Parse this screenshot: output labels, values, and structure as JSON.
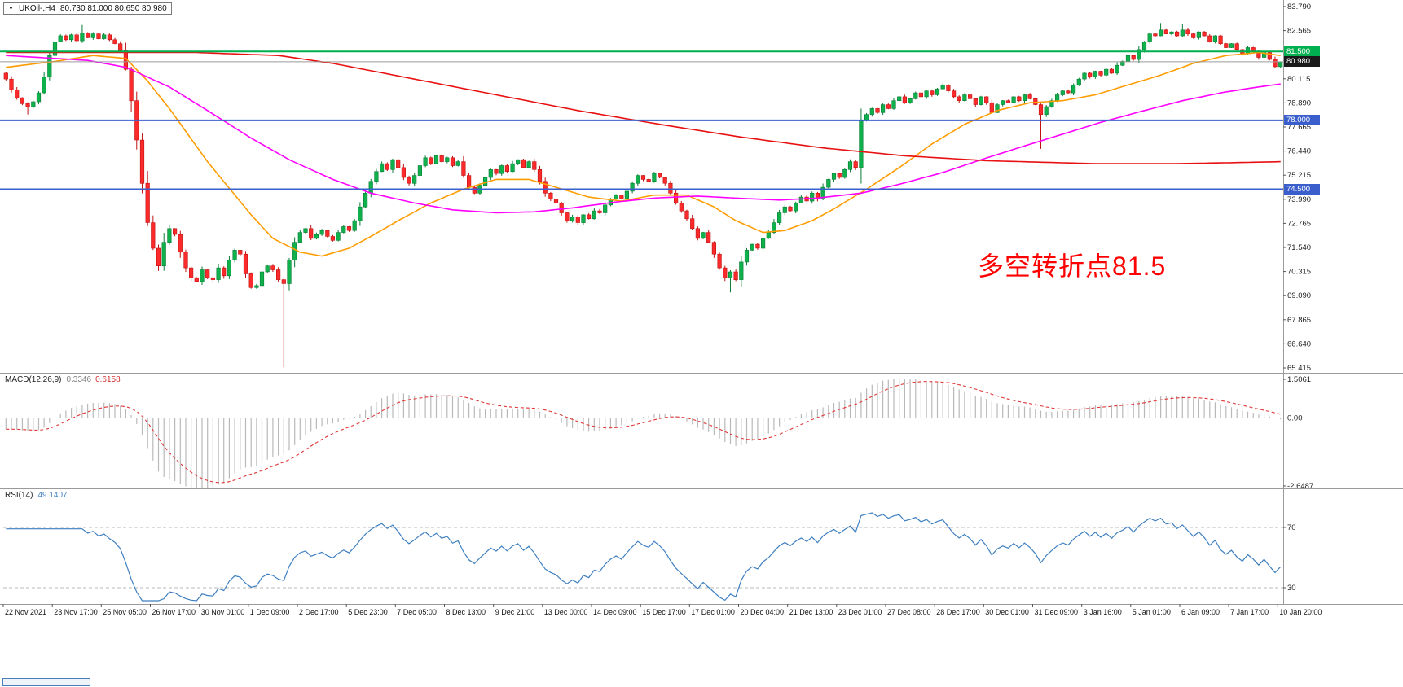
{
  "header": {
    "dropdown_icon": "▼",
    "symbol": "UKOil-,H4",
    "ohlc": "80.730 81.000 80.650 80.980"
  },
  "annotation": {
    "text": "多空转折点81.5",
    "color": "#fe0000"
  },
  "price_axis": {
    "labels": [
      "83.790",
      "82.565",
      "81.340",
      "80.115",
      "78.890",
      "77.665",
      "76.440",
      "75.215",
      "73.990",
      "72.765",
      "71.540",
      "70.315",
      "69.090",
      "67.865",
      "66.640",
      "65.415"
    ]
  },
  "hlines": [
    {
      "price": 81.5,
      "label": "81.500",
      "color": "#00b050",
      "width": 2
    },
    {
      "price": 78.0,
      "label": "78.000",
      "color": "#3a5fcd",
      "width": 2
    },
    {
      "price": 74.5,
      "label": "74.500",
      "color": "#3a5fcd",
      "width": 2
    }
  ],
  "current_price": {
    "value": 80.98,
    "label": "80.980",
    "line_color": "#9a9a9a",
    "badge_bg": "#1a1a1a"
  },
  "macd": {
    "name": "MACD(12,26,9)",
    "main_value": "0.3346",
    "signal_value": "0.6158",
    "axis_labels": [
      "1.5061",
      "0.00",
      "-2.6487"
    ],
    "histogram_color": "#b9b9b9",
    "signal_color": "#e03636"
  },
  "rsi": {
    "name": "RSI(14)",
    "value": "49.1407",
    "levels": [
      "70",
      "30"
    ],
    "line_color": "#3e7fc1"
  },
  "time_axis": {
    "labels": [
      "22 Nov 2021",
      "23 Nov 17:00",
      "25 Nov 05:00",
      "26 Nov 17:00",
      "30 Nov 01:00",
      "1 Dec 09:00",
      "2 Dec 17:00",
      "5 Dec 23:00",
      "7 Dec 05:00",
      "8 Dec 13:00",
      "9 Dec 21:00",
      "13 Dec 00:00",
      "14 Dec 09:00",
      "15 Dec 17:00",
      "17 Dec 01:00",
      "20 Dec 04:00",
      "21 Dec 13:00",
      "23 Dec 01:00",
      "27 Dec 08:00",
      "28 Dec 17:00",
      "30 Dec 01:00",
      "31 Dec 09:00",
      "3 Jan 16:00",
      "5 Jan 01:00",
      "6 Jan 09:00",
      "7 Jan 17:00",
      "10 Jan 20:00"
    ]
  },
  "chart_data": {
    "type": "candlestick",
    "title": "UKOil-,H4",
    "symbol": "UKOil",
    "timeframe": "H4",
    "bars": 235,
    "ylim": [
      65.415,
      83.79
    ],
    "price_levels": [
      81.5,
      78.0,
      74.5
    ],
    "current_ohlc": {
      "open": 80.73,
      "high": 81.0,
      "low": 80.65,
      "close": 80.98
    },
    "first_open": 80.4,
    "closes": [
      80.1,
      79.55,
      79.15,
      78.85,
      78.7,
      78.95,
      79.4,
      80.2,
      81.3,
      82.0,
      82.3,
      82.1,
      82.35,
      82.05,
      82.45,
      82.2,
      82.4,
      82.15,
      82.35,
      82.1,
      81.9,
      81.55,
      80.6,
      79.0,
      77.0,
      74.8,
      72.8,
      71.5,
      70.6,
      71.8,
      72.5,
      72.2,
      71.3,
      70.5,
      70.0,
      69.8,
      70.4,
      70.0,
      69.9,
      70.5,
      70.1,
      70.9,
      71.4,
      71.2,
      70.2,
      69.5,
      69.6,
      70.3,
      70.6,
      70.4,
      69.9,
      69.7,
      70.9,
      71.8,
      72.3,
      72.5,
      72.0,
      72.2,
      72.4,
      72.1,
      71.9,
      72.3,
      72.6,
      72.4,
      72.9,
      73.6,
      74.3,
      74.9,
      75.4,
      75.8,
      75.5,
      76.0,
      75.6,
      75.1,
      74.8,
      75.2,
      75.7,
      76.1,
      75.8,
      76.2,
      75.9,
      76.1,
      75.7,
      75.9,
      75.2,
      74.6,
      74.3,
      74.7,
      75.1,
      75.5,
      75.3,
      75.7,
      75.4,
      75.8,
      76.0,
      75.6,
      75.9,
      75.5,
      74.9,
      74.3,
      74.0,
      73.8,
      73.3,
      72.9,
      73.1,
      72.8,
      73.2,
      73.0,
      73.4,
      73.3,
      73.7,
      74.0,
      74.2,
      74.0,
      74.4,
      74.8,
      75.2,
      75.0,
      74.9,
      75.3,
      75.1,
      74.8,
      74.3,
      73.8,
      73.4,
      73.0,
      72.5,
      72.0,
      72.3,
      71.8,
      71.2,
      70.5,
      70.0,
      70.3,
      69.9,
      70.8,
      71.4,
      71.7,
      71.5,
      72.0,
      72.3,
      72.8,
      73.3,
      73.6,
      73.4,
      73.8,
      74.1,
      73.9,
      74.3,
      74.0,
      74.6,
      75.0,
      75.3,
      75.1,
      75.5,
      75.9,
      75.6,
      78.0,
      78.3,
      78.6,
      78.4,
      78.8,
      78.6,
      79.0,
      79.2,
      78.9,
      79.1,
      79.4,
      79.2,
      79.5,
      79.3,
      79.6,
      79.8,
      79.5,
      79.2,
      79.0,
      79.3,
      79.1,
      78.8,
      79.2,
      78.9,
      78.4,
      78.8,
      79.0,
      78.9,
      79.2,
      79.0,
      79.3,
      79.1,
      78.8,
      78.3,
      78.7,
      79.0,
      79.3,
      79.5,
      79.4,
      79.8,
      80.1,
      80.4,
      80.2,
      80.5,
      80.3,
      80.6,
      80.4,
      80.8,
      81.0,
      81.3,
      81.1,
      81.6,
      82.0,
      82.4,
      82.3,
      82.6,
      82.4,
      82.5,
      82.3,
      82.6,
      82.4,
      82.2,
      82.5,
      82.3,
      82.0,
      82.3,
      81.9,
      81.7,
      81.9,
      81.6,
      81.4,
      81.7,
      81.5,
      81.2,
      81.45,
      81.1,
      80.73,
      80.98
    ],
    "wick_overrides": {
      "4": {
        "low": 78.3
      },
      "14": {
        "high": 82.85
      },
      "22": {
        "high": 81.95
      },
      "51": {
        "low": 65.45
      },
      "133": {
        "low": 69.25
      },
      "190": {
        "low": 76.55
      },
      "212": {
        "high": 82.95
      },
      "216": {
        "high": 82.9
      },
      "234": {
        "high": 81.0,
        "low": 80.65
      }
    },
    "up_color": "#0fb14c",
    "up_stroke": "#0a7c35",
    "down_color": "#fb2b2b",
    "down_stroke": "#c01010",
    "moving_averages": [
      {
        "name": "ma-fast-orange",
        "color": "#ff9c00",
        "anchors": [
          [
            0,
            80.7
          ],
          [
            9,
            81.0
          ],
          [
            16,
            81.3
          ],
          [
            22,
            81.15
          ],
          [
            26,
            80.0
          ],
          [
            30,
            78.6
          ],
          [
            37,
            75.9
          ],
          [
            45,
            73.2
          ],
          [
            49,
            72.0
          ],
          [
            54,
            71.3
          ],
          [
            58,
            71.1
          ],
          [
            63,
            71.5
          ],
          [
            67,
            72.1
          ],
          [
            72,
            72.9
          ],
          [
            78,
            73.8
          ],
          [
            84,
            74.5
          ],
          [
            90,
            75.0
          ],
          [
            96,
            75.0
          ],
          [
            101,
            74.6
          ],
          [
            107,
            74.1
          ],
          [
            113,
            73.9
          ],
          [
            119,
            74.2
          ],
          [
            125,
            74.2
          ],
          [
            130,
            73.6
          ],
          [
            134,
            72.9
          ],
          [
            139,
            72.3
          ],
          [
            143,
            72.4
          ],
          [
            148,
            72.9
          ],
          [
            152,
            73.5
          ],
          [
            158,
            74.5
          ],
          [
            164,
            75.6
          ],
          [
            170,
            76.8
          ],
          [
            176,
            77.8
          ],
          [
            182,
            78.5
          ],
          [
            188,
            78.9
          ],
          [
            194,
            79.0
          ],
          [
            200,
            79.3
          ],
          [
            206,
            79.8
          ],
          [
            212,
            80.3
          ],
          [
            218,
            80.9
          ],
          [
            224,
            81.3
          ],
          [
            230,
            81.45
          ],
          [
            234,
            81.3
          ]
        ]
      },
      {
        "name": "ma-medium-magenta",
        "color": "#ff00ff",
        "anchors": [
          [
            0,
            81.3
          ],
          [
            15,
            81.05
          ],
          [
            22,
            80.7
          ],
          [
            30,
            79.7
          ],
          [
            37,
            78.5
          ],
          [
            45,
            77.1
          ],
          [
            52,
            76.0
          ],
          [
            60,
            75.0
          ],
          [
            67,
            74.3
          ],
          [
            75,
            73.8
          ],
          [
            82,
            73.45
          ],
          [
            90,
            73.3
          ],
          [
            97,
            73.35
          ],
          [
            104,
            73.55
          ],
          [
            112,
            73.85
          ],
          [
            119,
            74.05
          ],
          [
            127,
            74.15
          ],
          [
            134,
            74.05
          ],
          [
            142,
            73.95
          ],
          [
            149,
            74.05
          ],
          [
            157,
            74.3
          ],
          [
            164,
            74.75
          ],
          [
            172,
            75.35
          ],
          [
            179,
            76.0
          ],
          [
            187,
            76.7
          ],
          [
            194,
            77.3
          ],
          [
            201,
            77.9
          ],
          [
            209,
            78.5
          ],
          [
            216,
            79.0
          ],
          [
            224,
            79.45
          ],
          [
            230,
            79.7
          ],
          [
            234,
            79.85
          ]
        ]
      },
      {
        "name": "ma-slow-red",
        "color": "#e81010",
        "anchors": [
          [
            0,
            81.45
          ],
          [
            35,
            81.45
          ],
          [
            50,
            81.3
          ],
          [
            60,
            80.9
          ],
          [
            75,
            80.1
          ],
          [
            90,
            79.3
          ],
          [
            105,
            78.5
          ],
          [
            120,
            77.8
          ],
          [
            135,
            77.15
          ],
          [
            150,
            76.6
          ],
          [
            165,
            76.2
          ],
          [
            180,
            75.95
          ],
          [
            200,
            75.8
          ],
          [
            215,
            75.8
          ],
          [
            225,
            75.85
          ],
          [
            234,
            75.9
          ]
        ]
      }
    ]
  }
}
